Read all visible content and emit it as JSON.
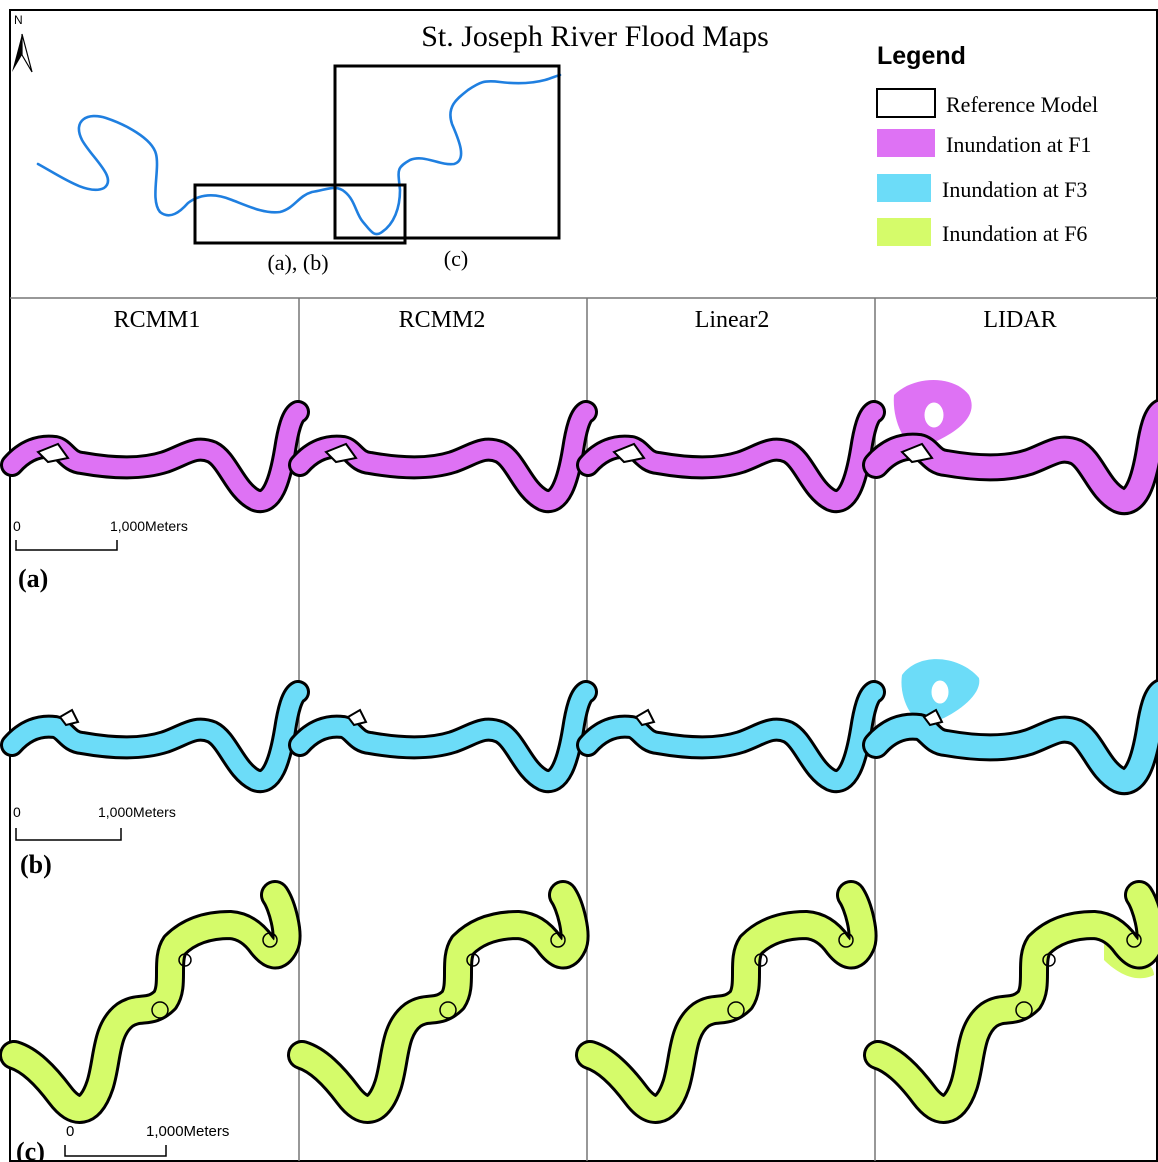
{
  "title": "St. Joseph River Flood Maps",
  "north_label": "N",
  "legend": {
    "title": "Legend",
    "items": [
      {
        "label": "Reference Model",
        "color": "#ffffff",
        "outline": true
      },
      {
        "label": "Inundation at F1",
        "color": "#de72f4"
      },
      {
        "label": "Inundation at F3",
        "color": "#6cdcf8"
      },
      {
        "label": "Inundation at F6",
        "color": "#d5fb6a"
      }
    ]
  },
  "overview": {
    "river_color": "#1f7fe0",
    "box_labels": [
      "(a), (b)",
      "(c)"
    ]
  },
  "columns": [
    "RCMM1",
    "RCMM2",
    "Linear2",
    "LIDAR"
  ],
  "rows": [
    {
      "label": "(a)",
      "scale_start": "0",
      "scale_end": "1,000Meters",
      "fill": "#de72f4"
    },
    {
      "label": "(b)",
      "scale_start": "0",
      "scale_end": "1,000Meters",
      "fill": "#6cdcf8"
    },
    {
      "label": "(c)",
      "scale_start": "0",
      "scale_end": "1,000Meters",
      "fill": "#d5fb6a"
    }
  ]
}
